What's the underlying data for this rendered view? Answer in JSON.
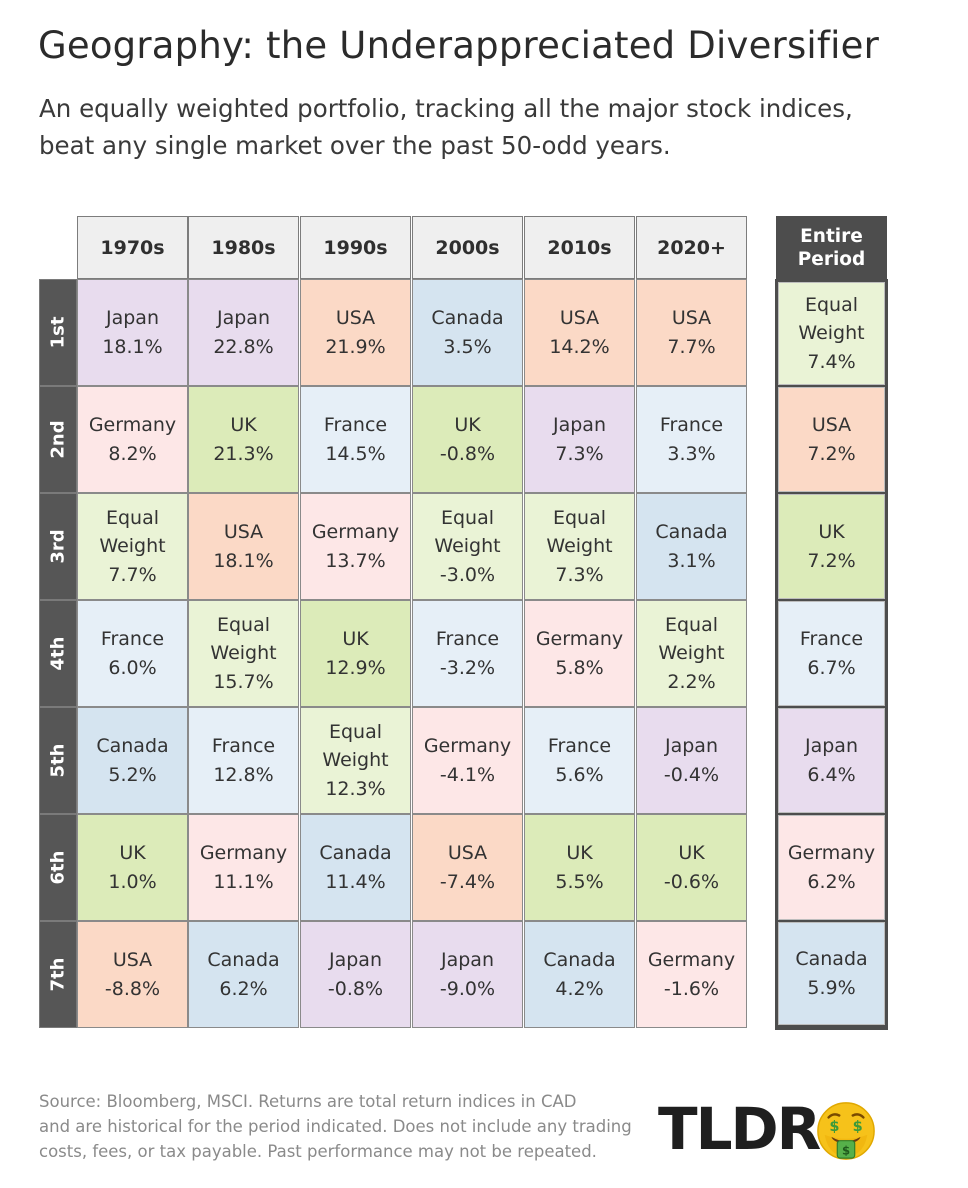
{
  "title": "Geography: the Underappreciated Diversifier",
  "subtitle": [
    "An equally weighted portfolio, tracking all the major stock indices,",
    "beat any single market over the past 50-odd years."
  ],
  "chart_data": {
    "type": "table",
    "columns": [
      "1970s",
      "1980s",
      "1990s",
      "2000s",
      "2010s",
      "2020+"
    ],
    "rank_labels": [
      "1st",
      "2nd",
      "3rd",
      "4th",
      "5th",
      "6th",
      "7th"
    ],
    "colors": {
      "Japan": "#e8dcee",
      "USA": "#fbd9c6",
      "Canada": "#d5e4f0",
      "Germany": "#fde7e7",
      "UK": "#dcebb9",
      "France": "#e6eff7",
      "Equal Weight": "#eaf3d6"
    },
    "decades": [
      [
        [
          "Japan",
          "18.1%"
        ],
        [
          "Germany",
          "8.2%"
        ],
        [
          "Equal Weight",
          "7.7%"
        ],
        [
          "France",
          "6.0%"
        ],
        [
          "Canada",
          "5.2%"
        ],
        [
          "UK",
          "1.0%"
        ],
        [
          "USA",
          "-8.8%"
        ]
      ],
      [
        [
          "Japan",
          "22.8%"
        ],
        [
          "UK",
          "21.3%"
        ],
        [
          "USA",
          "18.1%"
        ],
        [
          "Equal Weight",
          "15.7%"
        ],
        [
          "France",
          "12.8%"
        ],
        [
          "Germany",
          "11.1%"
        ],
        [
          "Canada",
          "6.2%"
        ]
      ],
      [
        [
          "USA",
          "21.9%"
        ],
        [
          "France",
          "14.5%"
        ],
        [
          "Germany",
          "13.7%"
        ],
        [
          "UK",
          "12.9%"
        ],
        [
          "Equal Weight",
          "12.3%"
        ],
        [
          "Canada",
          "11.4%"
        ],
        [
          "Japan",
          "-0.8%"
        ]
      ],
      [
        [
          "Canada",
          "3.5%"
        ],
        [
          "UK",
          "-0.8%"
        ],
        [
          "Equal Weight",
          "-3.0%"
        ],
        [
          "France",
          "-3.2%"
        ],
        [
          "Germany",
          "-4.1%"
        ],
        [
          "USA",
          "-7.4%"
        ],
        [
          "Japan",
          "-9.0%"
        ]
      ],
      [
        [
          "USA",
          "14.2%"
        ],
        [
          "Japan",
          "7.3%"
        ],
        [
          "Equal Weight",
          "7.3%"
        ],
        [
          "Germany",
          "5.8%"
        ],
        [
          "France",
          "5.6%"
        ],
        [
          "UK",
          "5.5%"
        ],
        [
          "Canada",
          "4.2%"
        ]
      ],
      [
        [
          "USA",
          "7.7%"
        ],
        [
          "France",
          "3.3%"
        ],
        [
          "Canada",
          "3.1%"
        ],
        [
          "Equal Weight",
          "2.2%"
        ],
        [
          "Japan",
          "-0.4%"
        ],
        [
          "UK",
          "-0.6%"
        ],
        [
          "Germany",
          "-1.6%"
        ]
      ]
    ],
    "entire_period_label": [
      "Entire",
      "Period"
    ],
    "entire_period": [
      [
        "Equal Weight",
        "7.4%"
      ],
      [
        "USA",
        "7.2%"
      ],
      [
        "UK",
        "7.2%"
      ],
      [
        "France",
        "6.7%"
      ],
      [
        "Japan",
        "6.4%"
      ],
      [
        "Germany",
        "6.2%"
      ],
      [
        "Canada",
        "5.9%"
      ]
    ]
  },
  "footer": [
    "Source: Bloomberg, MSCI. Returns are total return indices in CAD",
    "and are historical for the period indicated. Does not include any trading",
    "costs, fees, or tax payable. Past performance may not be repeated."
  ],
  "logo": {
    "text": "TLDR",
    "icon": "money-mouth-face-icon"
  }
}
